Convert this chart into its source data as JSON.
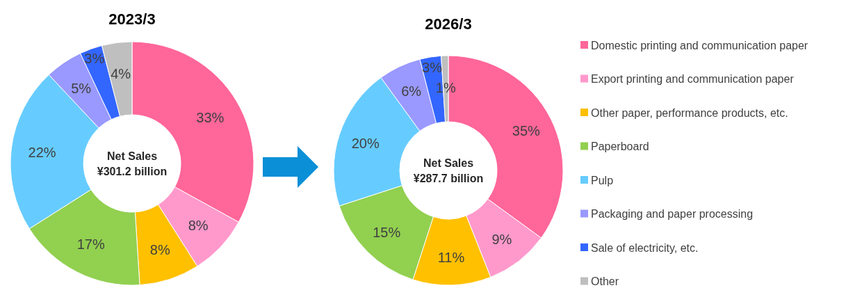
{
  "chart_data": [
    {
      "type": "donut",
      "title": "2023/3",
      "categories": [
        null,
        null,
        null,
        null,
        null,
        null,
        null,
        null
      ],
      "values": [
        33,
        8,
        8,
        17,
        22,
        5,
        3,
        4
      ],
      "value_labels": [
        "33%",
        "8%",
        "8%",
        "17%",
        "22%",
        "5%",
        "3%",
        "4%"
      ],
      "colors": [
        "#ff6699",
        "#ff99cc",
        "#ffc000",
        "#92d050",
        "#66ccff",
        "#9999ff",
        "#3366ff",
        "#bfbfbf"
      ],
      "annotations": [
        "Net Sales",
        "¥301.2 billion"
      ],
      "legend": false
    },
    {
      "type": "donut",
      "title": "2026/3",
      "categories": [
        "Domestic printing and communication paper",
        "Export printing and communication paper",
        "Other paper, performance products, etc.",
        "Paperboard",
        "Pulp",
        "Packaging and paper processing",
        "Sale of electricity, etc.",
        "Other"
      ],
      "values": [
        35,
        9,
        11,
        15,
        20,
        6,
        3,
        1
      ],
      "value_labels": [
        "35%",
        "9%",
        "11%",
        "15%",
        "20%",
        "6%",
        "3%",
        "1%"
      ],
      "colors": [
        "#ff6699",
        "#ff99cc",
        "#ffc000",
        "#92d050",
        "#66ccff",
        "#9999ff",
        "#3366ff",
        "#bfbfbf"
      ],
      "annotations": [
        "Net Sales",
        "¥287.7 billion"
      ],
      "legend": "right"
    }
  ]
}
